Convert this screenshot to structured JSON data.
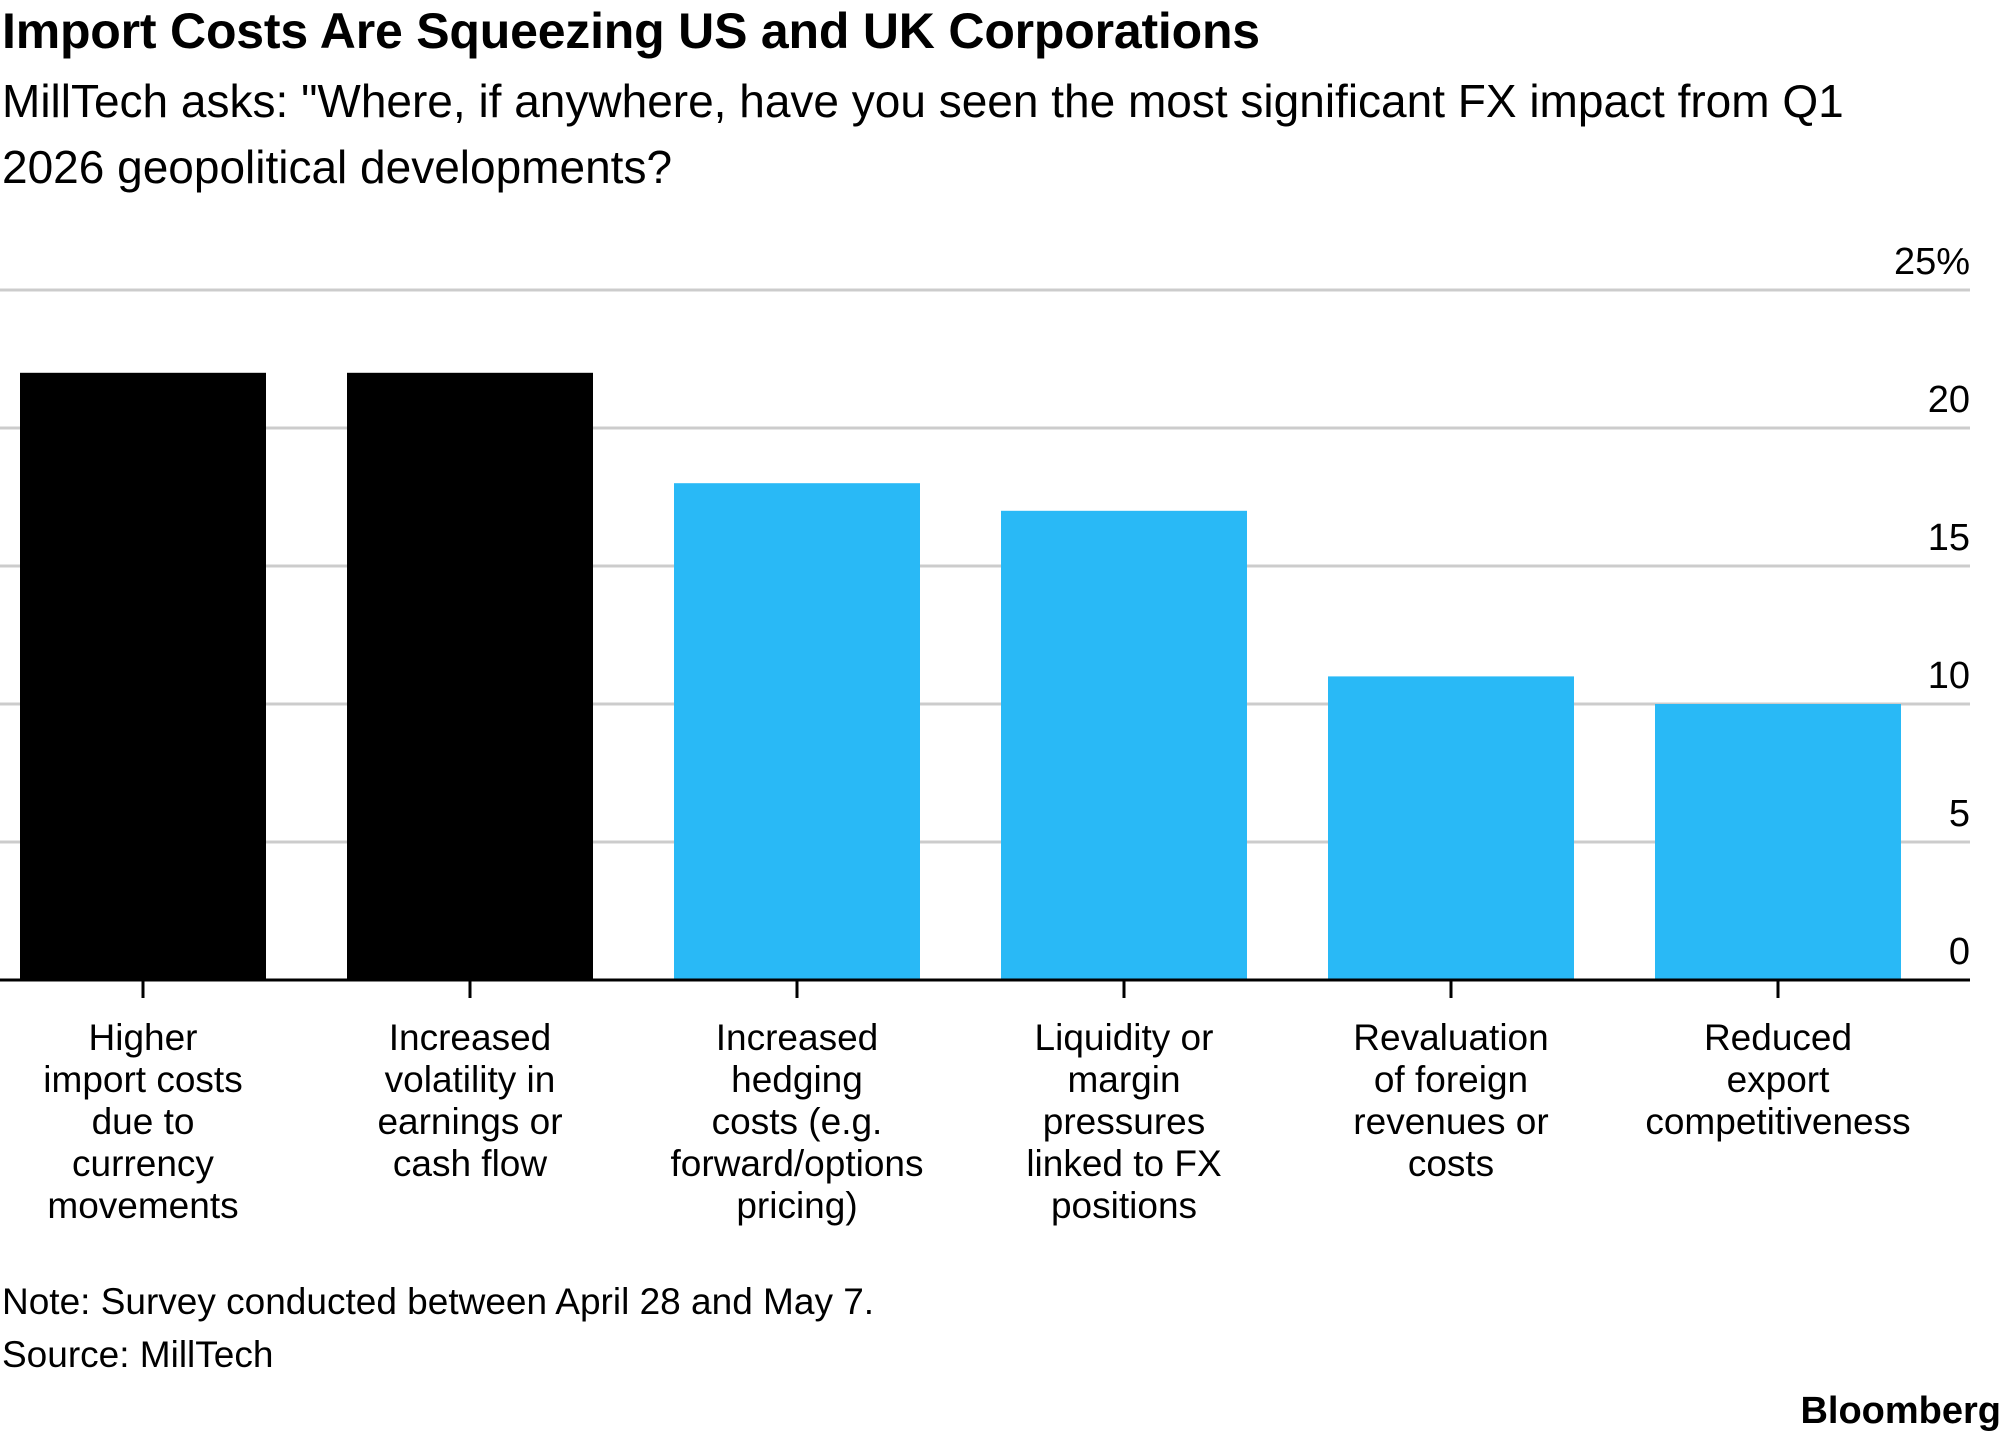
{
  "header": {
    "title": "Import Costs Are Squeezing US and UK Corporations",
    "subtitle": "MillTech asks: \"Where, if anywhere, have you seen the most significant FX impact from Q1 2026 geopolitical developments?"
  },
  "chart_data": {
    "type": "bar",
    "categories": [
      "Higher import costs due to currency movements",
      "Increased volatility in earnings or cash flow",
      "Increased hedging costs (e.g. forward/options pricing)",
      "Liquidity or margin pressures linked to FX positions",
      "Revaluation of foreign revenues or costs",
      "Reduced export competitiveness"
    ],
    "category_label_lines": [
      [
        "Higher",
        "import costs",
        "due to",
        "currency",
        "movements"
      ],
      [
        "Increased",
        "volatility in",
        "earnings or",
        "cash flow"
      ],
      [
        "Increased",
        "hedging",
        "costs (e.g.",
        "forward/options",
        "pricing)"
      ],
      [
        "Liquidity or",
        "margin",
        "pressures",
        "linked to FX",
        "positions"
      ],
      [
        "Revaluation",
        "of foreign",
        "revenues or",
        "costs"
      ],
      [
        "Reduced",
        "export",
        "competitiveness"
      ]
    ],
    "values": [
      22,
      22,
      18,
      17,
      11,
      10
    ],
    "bar_colors": [
      "#000000",
      "#000000",
      "#29b9f6",
      "#29b9f6",
      "#29b9f6",
      "#29b9f6"
    ],
    "ylim": [
      0,
      25
    ],
    "yticks": [
      0,
      5,
      10,
      15,
      20,
      25
    ],
    "ytick_labels": [
      "0",
      "5",
      "10",
      "15",
      "20",
      "25%"
    ],
    "y_axis_side": "right",
    "grid": true,
    "xlabel": "",
    "ylabel": ""
  },
  "footer": {
    "note": "Note: Survey conducted between April 28 and May 7.",
    "source": "Source: MillTech",
    "brand": "Bloomberg"
  },
  "colors": {
    "highlight": "#000000",
    "accent": "#29b9f6",
    "grid": "#cccccc"
  }
}
